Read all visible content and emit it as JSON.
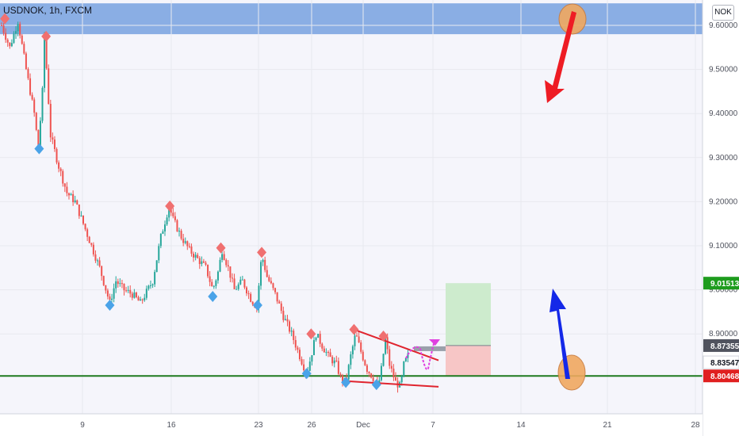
{
  "header": {
    "ticker": "USDNOK, 1h, FXCM",
    "currency_button": "NOK"
  },
  "colors": {
    "background": "#f5f5fb",
    "zone": "#8aaee4",
    "support": "#1e7a1e",
    "candle_up": "#26a69a",
    "candle_down": "#ef5350",
    "peak_marker": "#f07070",
    "trough_marker": "#4aa3e8",
    "wedge_line": "#e0242e",
    "path_arrow": "#e040e0",
    "target_box": "#cdebcd",
    "stop_box": "#f7c6c6",
    "entry_bar": "#9aa0ab",
    "red_arrow": "#ee1c24",
    "blue_arrow": "#1428e8",
    "circle": "#f0a860"
  },
  "chart_data": {
    "type": "candlestick",
    "title": "USDNOK, 1h, FXCM",
    "instrument": "USDNOK",
    "timeframe": "1h",
    "source": "FXCM",
    "y_axis": {
      "range": [
        8.68,
        9.65
      ],
      "ticks": [
        "9.60000",
        "9.50000",
        "9.40000",
        "9.30000",
        "9.20000",
        "9.10000",
        "9.00000",
        "8.90000"
      ]
    },
    "x_axis": {
      "ticks": [
        "9",
        "16",
        "23",
        "26",
        "Dec",
        "7",
        "14",
        "21",
        "28"
      ]
    },
    "price_path": [
      {
        "x": 0,
        "y": 9.6
      },
      {
        "x": 2,
        "y": 9.55
      },
      {
        "x": 4,
        "y": 9.61
      },
      {
        "x": 6,
        "y": 9.5
      },
      {
        "x": 8,
        "y": 9.4
      },
      {
        "x": 9,
        "y": 9.32
      },
      {
        "x": 10,
        "y": 9.45
      },
      {
        "x": 10.5,
        "y": 9.58
      },
      {
        "x": 12,
        "y": 9.35
      },
      {
        "x": 14,
        "y": 9.28
      },
      {
        "x": 16,
        "y": 9.22
      },
      {
        "x": 18,
        "y": 9.2
      },
      {
        "x": 20,
        "y": 9.15
      },
      {
        "x": 24,
        "y": 9.05
      },
      {
        "x": 26.5,
        "y": 8.97
      },
      {
        "x": 28,
        "y": 9.02
      },
      {
        "x": 30,
        "y": 9.0
      },
      {
        "x": 32,
        "y": 8.99
      },
      {
        "x": 34,
        "y": 8.97
      },
      {
        "x": 37,
        "y": 9.02
      },
      {
        "x": 39,
        "y": 9.12
      },
      {
        "x": 41,
        "y": 9.19
      },
      {
        "x": 42,
        "y": 9.16
      },
      {
        "x": 44,
        "y": 9.12
      },
      {
        "x": 46,
        "y": 9.09
      },
      {
        "x": 48,
        "y": 9.07
      },
      {
        "x": 50,
        "y": 9.05
      },
      {
        "x": 51.7,
        "y": 9.0
      },
      {
        "x": 53,
        "y": 9.04
      },
      {
        "x": 54,
        "y": 9.09
      },
      {
        "x": 55.5,
        "y": 9.05
      },
      {
        "x": 57,
        "y": 9.0
      },
      {
        "x": 59,
        "y": 9.02
      },
      {
        "x": 61,
        "y": 8.98
      },
      {
        "x": 62.5,
        "y": 8.96
      },
      {
        "x": 63.7,
        "y": 9.08
      },
      {
        "x": 65,
        "y": 9.03
      },
      {
        "x": 67,
        "y": 8.99
      },
      {
        "x": 69,
        "y": 8.94
      },
      {
        "x": 71,
        "y": 8.9
      },
      {
        "x": 73,
        "y": 8.85
      },
      {
        "x": 74.7,
        "y": 8.81
      },
      {
        "x": 75.8,
        "y": 8.85
      },
      {
        "x": 77,
        "y": 8.9
      },
      {
        "x": 78.7,
        "y": 8.87
      },
      {
        "x": 80,
        "y": 8.85
      },
      {
        "x": 82,
        "y": 8.83
      },
      {
        "x": 83,
        "y": 8.8
      },
      {
        "x": 84.3,
        "y": 8.79
      },
      {
        "x": 85.5,
        "y": 8.85
      },
      {
        "x": 86.7,
        "y": 8.9
      },
      {
        "x": 88,
        "y": 8.86
      },
      {
        "x": 89.5,
        "y": 8.82
      },
      {
        "x": 91,
        "y": 8.8
      },
      {
        "x": 92.2,
        "y": 8.78
      },
      {
        "x": 93,
        "y": 8.82
      },
      {
        "x": 94,
        "y": 8.89
      },
      {
        "x": 95,
        "y": 8.83
      },
      {
        "x": 96.5,
        "y": 8.79
      },
      {
        "x": 97.7,
        "y": 8.78
      },
      {
        "x": 98.5,
        "y": 8.83
      },
      {
        "x": 99.5,
        "y": 8.85
      }
    ],
    "pivot_highs": [
      {
        "x": 0.8,
        "y": 9.615
      },
      {
        "x": 10.9,
        "y": 9.575
      },
      {
        "x": 41.2,
        "y": 9.19
      },
      {
        "x": 53.7,
        "y": 9.095
      },
      {
        "x": 63.7,
        "y": 9.085
      },
      {
        "x": 75.8,
        "y": 8.9
      },
      {
        "x": 86.3,
        "y": 8.91
      },
      {
        "x": 93.5,
        "y": 8.895
      }
    ],
    "pivot_lows": [
      {
        "x": 9.2,
        "y": 9.32
      },
      {
        "x": 26.5,
        "y": 8.965
      },
      {
        "x": 51.7,
        "y": 8.985
      },
      {
        "x": 62.7,
        "y": 8.965
      },
      {
        "x": 74.7,
        "y": 8.81
      },
      {
        "x": 84.3,
        "y": 8.79
      },
      {
        "x": 91.8,
        "y": 8.785
      }
    ],
    "resistance_zone": [
      9.58,
      9.65
    ],
    "support_level": 8.80468,
    "price_labels": [
      {
        "price": 9.01513,
        "text": "9.01513",
        "bg": "#1e9c1e",
        "fg": "#ffffff"
      },
      {
        "price": 8.87355,
        "text": "8.87355",
        "bg": "#50535e",
        "fg": "#ffffff"
      },
      {
        "price": 8.83547,
        "text": "8.83547",
        "bg": "#ffffff",
        "fg": "#131722"
      },
      {
        "price": 8.80468,
        "text": "8.80468",
        "bg": "#e02020",
        "fg": "#ffffff"
      }
    ],
    "position": {
      "entry": 8.87355,
      "target": 9.01513,
      "stop": 8.80468
    },
    "wedge": {
      "upper": [
        {
          "x": 86.3,
          "y": 8.91
        },
        {
          "x": 107,
          "y": 8.84
        }
      ],
      "lower": [
        {
          "x": 84.3,
          "y": 8.793
        },
        {
          "x": 107,
          "y": 8.78
        }
      ]
    }
  }
}
